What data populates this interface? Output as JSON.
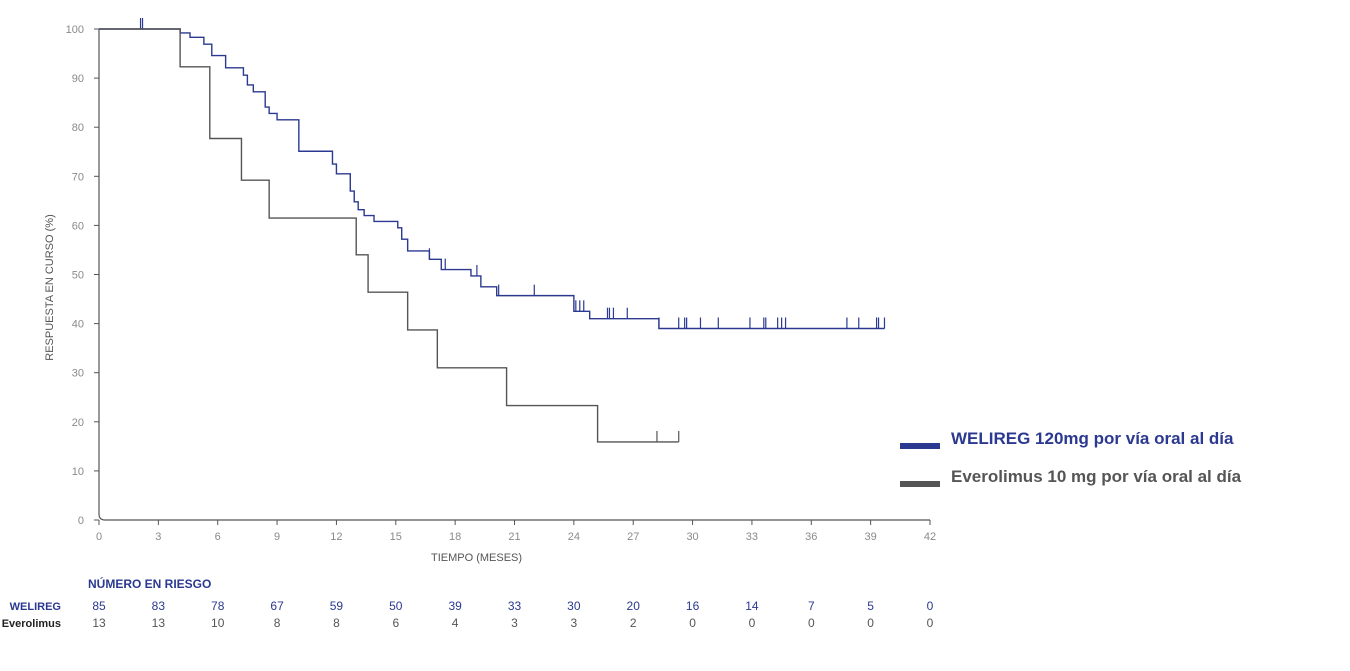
{
  "chart_data": {
    "type": "line",
    "title": "",
    "xlabel": "TIEMPO (MESES)",
    "ylabel": "RESPUESTA EN CURSO (%)",
    "xlim": [
      0,
      42
    ],
    "ylim": [
      0,
      100
    ],
    "x_ticks": [
      "0",
      "3",
      "6",
      "9",
      "12",
      "15",
      "18",
      "21",
      "24",
      "27",
      "30",
      "33",
      "36",
      "39",
      "42"
    ],
    "y_ticks": [
      "0",
      "10",
      "20",
      "30",
      "40",
      "50",
      "60",
      "70",
      "80",
      "90",
      "100"
    ],
    "grid": false,
    "legend_position": "right",
    "series": [
      {
        "name": "WELIREG 120mg por vía oral al día",
        "color": "#2b3990",
        "steps": [
          [
            0,
            100
          ],
          [
            4.1,
            99.2
          ],
          [
            4.6,
            98.3
          ],
          [
            5.3,
            96.9
          ],
          [
            5.7,
            94.6
          ],
          [
            6.4,
            92.1
          ],
          [
            7.3,
            90.6
          ],
          [
            7.5,
            88.6
          ],
          [
            7.8,
            87.2
          ],
          [
            8.4,
            84.1
          ],
          [
            8.6,
            82.8
          ],
          [
            9.0,
            81.5
          ],
          [
            10.1,
            75.1
          ],
          [
            11.8,
            72.5
          ],
          [
            12.0,
            70.5
          ],
          [
            12.7,
            67.0
          ],
          [
            12.9,
            64.8
          ],
          [
            13.1,
            63.2
          ],
          [
            13.4,
            62.0
          ],
          [
            13.9,
            60.8
          ],
          [
            15.1,
            59.5
          ],
          [
            15.3,
            57.2
          ],
          [
            15.6,
            54.8
          ],
          [
            16.7,
            53.1
          ],
          [
            17.3,
            51.0
          ],
          [
            18.8,
            49.7
          ],
          [
            19.3,
            47.5
          ],
          [
            20.1,
            45.7
          ],
          [
            24.0,
            42.5
          ],
          [
            24.8,
            41.0
          ],
          [
            28.3,
            39.0
          ],
          [
            39.7,
            39.0
          ]
        ],
        "censor_times": [
          2.1,
          2.2,
          16.7,
          17.5,
          19.1,
          20.2,
          22.0,
          24.1,
          24.3,
          24.5,
          25.7,
          25.8,
          26.0,
          26.7,
          28.3,
          29.3,
          29.6,
          29.7,
          30.4,
          31.3,
          32.9,
          33.6,
          33.7,
          34.3,
          34.5,
          34.7,
          37.8,
          38.4,
          39.3,
          39.4,
          39.7
        ],
        "risk": [
          "85",
          "83",
          "78",
          "67",
          "59",
          "50",
          "39",
          "33",
          "30",
          "20",
          "16",
          "14",
          "7",
          "5",
          "0"
        ]
      },
      {
        "name": "Everolimus 10 mg por vía oral al día",
        "color": "#555555",
        "steps": [
          [
            0,
            100
          ],
          [
            4.1,
            92.3
          ],
          [
            5.6,
            77.7
          ],
          [
            7.2,
            69.2
          ],
          [
            8.6,
            61.5
          ],
          [
            13.0,
            54.0
          ],
          [
            13.6,
            46.4
          ],
          [
            15.6,
            38.7
          ],
          [
            17.1,
            31.0
          ],
          [
            20.6,
            23.3
          ],
          [
            25.2,
            15.9
          ],
          [
            29.3,
            15.9
          ]
        ],
        "censor_times": [
          28.2,
          29.3
        ],
        "risk": [
          "13",
          "13",
          "10",
          "8",
          "8",
          "6",
          "4",
          "3",
          "3",
          "2",
          "0",
          "0",
          "0",
          "0",
          "0"
        ]
      }
    ]
  },
  "risk_table": {
    "title": "NÚMERO EN RIESGO",
    "rows": [
      {
        "label": "WELIREG",
        "color": "#2b3990"
      },
      {
        "label": "Everolimus",
        "color": "#222222"
      }
    ]
  }
}
